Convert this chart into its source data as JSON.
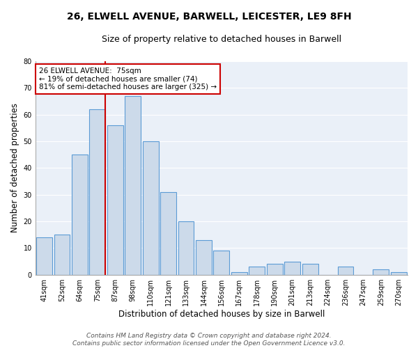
{
  "title": "26, ELWELL AVENUE, BARWELL, LEICESTER, LE9 8FH",
  "subtitle": "Size of property relative to detached houses in Barwell",
  "xlabel": "Distribution of detached houses by size in Barwell",
  "ylabel": "Number of detached properties",
  "categories": [
    "41sqm",
    "52sqm",
    "64sqm",
    "75sqm",
    "87sqm",
    "98sqm",
    "110sqm",
    "121sqm",
    "133sqm",
    "144sqm",
    "156sqm",
    "167sqm",
    "178sqm",
    "190sqm",
    "201sqm",
    "213sqm",
    "224sqm",
    "236sqm",
    "247sqm",
    "259sqm",
    "270sqm"
  ],
  "values": [
    14,
    15,
    45,
    62,
    56,
    67,
    50,
    31,
    20,
    13,
    9,
    1,
    3,
    4,
    5,
    4,
    0,
    3,
    0,
    2,
    1
  ],
  "bar_color": "#ccdaea",
  "bar_edge_color": "#5b9bd5",
  "vline_x_index": 3,
  "vline_color": "#cc0000",
  "ylim": [
    0,
    80
  ],
  "yticks": [
    0,
    10,
    20,
    30,
    40,
    50,
    60,
    70,
    80
  ],
  "annotation_title": "26 ELWELL AVENUE:  75sqm",
  "annotation_line1": "← 19% of detached houses are smaller (74)",
  "annotation_line2": "81% of semi-detached houses are larger (325) →",
  "annotation_box_color": "#ffffff",
  "annotation_box_edge_color": "#cc0000",
  "footer_line1": "Contains HM Land Registry data © Crown copyright and database right 2024.",
  "footer_line2": "Contains public sector information licensed under the Open Government Licence v3.0.",
  "background_color": "#ffffff",
  "plot_bg_color": "#eaf0f8",
  "grid_color": "#ffffff",
  "title_fontsize": 10,
  "subtitle_fontsize": 9,
  "axis_label_fontsize": 8.5,
  "tick_fontsize": 7,
  "annotation_fontsize": 7.5,
  "footer_fontsize": 6.5
}
